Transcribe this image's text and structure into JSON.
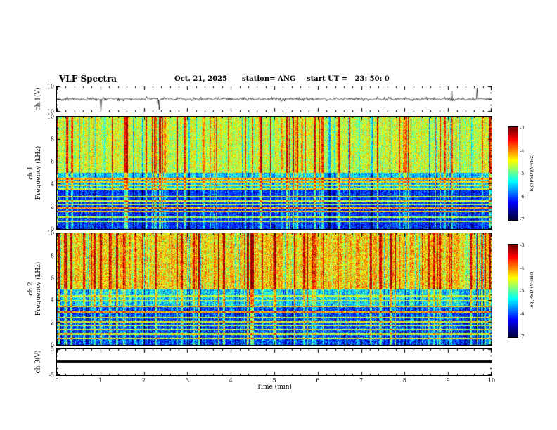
{
  "header": {
    "title": "VLF Spectra",
    "date": "Oct. 21, 2025",
    "station": "station= ANG",
    "start_ut": "start UT =   23: 50: 0"
  },
  "xaxis": {
    "label": "Time (min)",
    "range": [
      0,
      10
    ],
    "ticks": [
      0,
      1,
      2,
      3,
      4,
      5,
      6,
      7,
      8,
      9,
      10
    ]
  },
  "colorbar": {
    "label": "log(PSD)(V²/Hz)",
    "ticks": [
      -3,
      -4,
      -5,
      -6,
      -7
    ],
    "range": [
      -7,
      -3
    ],
    "colormap": "jet"
  },
  "chart_data": [
    {
      "type": "line",
      "panel": "ch1-waveform",
      "ylabel": "ch.1(V)",
      "ylim": [
        -10,
        10
      ],
      "yticks": [
        10,
        -10
      ],
      "content": "broadband VLF time series: ~±1 V noise band with impulsive sferic spikes up to ±9 V over 0-10 min"
    },
    {
      "type": "heatmap",
      "panel": "ch1-spectrogram",
      "ylabel_line1": "ch.1",
      "ylabel_line2": "Frequency (kHz)",
      "ylim": [
        0,
        10
      ],
      "yticks": [
        10,
        8,
        6,
        4,
        2,
        0
      ],
      "value_range": [
        -7,
        -3
      ],
      "hlines_khz": [
        4.5,
        4.2,
        3.9,
        3.6,
        2.9,
        2.5,
        2.2,
        1.9,
        1.6,
        1.1,
        0.7
      ],
      "content": "spectrogram: green/yellow diffuse band above ~5 kHz with dense vertical red sferic streaks; dark blue/black below ~4.5 kHz crossed by bright narrowband horizontal transmitter lines and full-height vertical streaks"
    },
    {
      "type": "heatmap",
      "panel": "ch2-spectrogram",
      "ylabel_line1": "ch.2",
      "ylabel_line2": "Frequency (kHz)",
      "ylim": [
        0,
        10
      ],
      "yticks": [
        10,
        8,
        6,
        4,
        2,
        0
      ],
      "value_range": [
        -7,
        -3
      ],
      "hlines_khz": [
        4.4,
        4.0,
        3.5,
        3.0,
        2.5,
        2.1,
        1.8,
        1.4,
        1.0,
        0.6
      ],
      "content": "spectrogram: brighter yellow/orange diffuse band above ~5 kHz with many red sferic streaks; dark blue/black low-frequency region with narrowband horizontal lines and vertical streaks"
    },
    {
      "type": "line",
      "panel": "ch3-waveform",
      "ylabel": "ch.3(V)",
      "ylim": [
        -5,
        5
      ],
      "yticks": [
        5,
        -5
      ],
      "content": "constant flat trace at ~0 V for the full 10 minutes"
    }
  ]
}
